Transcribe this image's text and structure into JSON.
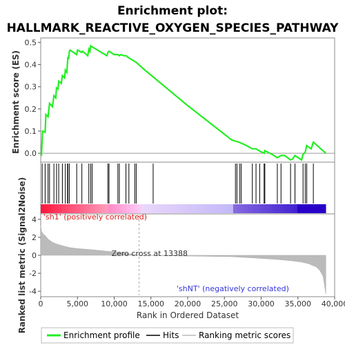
{
  "chart_data": {
    "type": "line",
    "title_line1": "Enrichment plot:",
    "title_line2": "HALLMARK_REACTIVE_OXYGEN_SPECIES_PATHWAY",
    "top_panel": {
      "ylabel": "Enrichment score (ES)",
      "ylim": [
        -0.04,
        0.52
      ],
      "yticks": [
        "0.0",
        "0.1",
        "0.2",
        "0.3",
        "0.4",
        "0.5"
      ],
      "ytick_values": [
        0.0,
        0.1,
        0.2,
        0.3,
        0.4,
        0.5
      ],
      "line_color": "#22ee22",
      "es_points": [
        [
          0,
          0.0
        ],
        [
          100,
          -0.005
        ],
        [
          250,
          0.1
        ],
        [
          600,
          0.095
        ],
        [
          700,
          0.175
        ],
        [
          1000,
          0.165
        ],
        [
          1200,
          0.225
        ],
        [
          1600,
          0.21
        ],
        [
          1800,
          0.26
        ],
        [
          2050,
          0.25
        ],
        [
          2150,
          0.295
        ],
        [
          2350,
          0.29
        ],
        [
          2450,
          0.325
        ],
        [
          2800,
          0.315
        ],
        [
          2950,
          0.35
        ],
        [
          3250,
          0.34
        ],
        [
          3350,
          0.375
        ],
        [
          3550,
          0.365
        ],
        [
          3650,
          0.41
        ],
        [
          3700,
          0.435
        ],
        [
          3800,
          0.425
        ],
        [
          3900,
          0.46
        ],
        [
          4000,
          0.465
        ],
        [
          4900,
          0.445
        ],
        [
          5000,
          0.465
        ],
        [
          5600,
          0.455
        ],
        [
          5700,
          0.46
        ],
        [
          6400,
          0.44
        ],
        [
          6550,
          0.47
        ],
        [
          6700,
          0.46
        ],
        [
          6800,
          0.485
        ],
        [
          7000,
          0.48
        ],
        [
          9000,
          0.44
        ],
        [
          9150,
          0.455
        ],
        [
          9300,
          0.46
        ],
        [
          10000,
          0.445
        ],
        [
          10500,
          0.445
        ],
        [
          10700,
          0.44
        ],
        [
          10900,
          0.445
        ],
        [
          11300,
          0.44
        ],
        [
          11600,
          0.44
        ],
        [
          12000,
          0.43
        ],
        [
          13000,
          0.41
        ],
        [
          14000,
          0.38
        ],
        [
          20000,
          0.215
        ],
        [
          26000,
          0.06
        ],
        [
          27000,
          0.05
        ],
        [
          28000,
          0.035
        ],
        [
          28800,
          0.02
        ],
        [
          29300,
          0.02
        ],
        [
          29800,
          0.01
        ],
        [
          30400,
          0.0
        ],
        [
          30500,
          0.012
        ],
        [
          31500,
          -0.005
        ],
        [
          32200,
          -0.02
        ],
        [
          32700,
          -0.01
        ],
        [
          33200,
          -0.01
        ],
        [
          34000,
          -0.03
        ],
        [
          34300,
          -0.025
        ],
        [
          34600,
          -0.01
        ],
        [
          35500,
          -0.03
        ],
        [
          35700,
          -0.005
        ],
        [
          36000,
          0.005
        ],
        [
          36200,
          0.035
        ],
        [
          36800,
          0.02
        ],
        [
          37100,
          0.05
        ],
        [
          38800,
          0.0
        ]
      ]
    },
    "hits_panel": {
      "hit_positions": [
        200,
        600,
        1000,
        1200,
        1800,
        2150,
        2450,
        2950,
        3350,
        3650,
        3700,
        3900,
        4900,
        5600,
        6550,
        6800,
        7000,
        9150,
        9300,
        10500,
        10700,
        11600,
        12000,
        12800,
        13000,
        15300,
        26500,
        26700,
        27100,
        27300,
        28800,
        29300,
        29800,
        30400,
        30500,
        32200,
        32700,
        34000,
        34600,
        35700,
        36000,
        36200,
        37100
      ]
    },
    "bottom_panel": {
      "ylabel": "Ranked list metric (Signal2Noise)",
      "ylim": [
        -4.6,
        4.6
      ],
      "yticks": [
        "-4",
        "-2",
        "0",
        "2",
        "4"
      ],
      "ytick_values": [
        -4,
        -2,
        0,
        2,
        4
      ],
      "zero_cross_label": "Zero cross at 13388",
      "zero_cross": 13388,
      "pos_label": "'sh1' (positively correlated)",
      "neg_label": "'shNT' (negatively correlated)",
      "metric_points": [
        [
          0,
          3.3
        ],
        [
          100,
          2.7
        ],
        [
          300,
          2.4
        ],
        [
          600,
          2.2
        ],
        [
          1000,
          1.8
        ],
        [
          1500,
          1.5
        ],
        [
          2000,
          1.3
        ],
        [
          3000,
          1.05
        ],
        [
          4000,
          0.85
        ],
        [
          5000,
          0.75
        ],
        [
          7000,
          0.62
        ],
        [
          9000,
          0.45
        ],
        [
          11000,
          0.28
        ],
        [
          12500,
          0.12
        ],
        [
          13388,
          0.0
        ],
        [
          26000,
          -0.15
        ],
        [
          29000,
          -0.3
        ],
        [
          32000,
          -0.45
        ],
        [
          34000,
          -0.6
        ],
        [
          35500,
          -0.75
        ],
        [
          36500,
          -0.95
        ],
        [
          37500,
          -1.3
        ],
        [
          38000,
          -1.7
        ],
        [
          38400,
          -2.3
        ],
        [
          38600,
          -3.2
        ],
        [
          38800,
          -4.3
        ]
      ]
    },
    "xaxis": {
      "xlabel": "Rank in Ordered Dataset",
      "xlim": [
        0,
        40000
      ],
      "xticks": [
        "0",
        "5,000",
        "10,000",
        "15,000",
        "20,000",
        "25,000",
        "30,000",
        "35,000",
        "40,000"
      ],
      "xtick_values": [
        0,
        5000,
        10000,
        15000,
        20000,
        25000,
        30000,
        35000,
        40000
      ]
    },
    "legend": [
      {
        "label": "Enrichment profile",
        "color": "#22ee22",
        "kind": "line"
      },
      {
        "label": "Hits",
        "color": "#000000",
        "kind": "line"
      },
      {
        "label": "Ranking metric scores",
        "color": "#bbbbbb",
        "kind": "line"
      }
    ]
  }
}
